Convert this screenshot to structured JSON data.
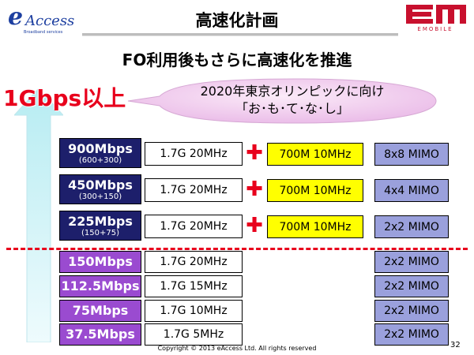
{
  "header": {
    "brand_e": "e",
    "brand_access": "Access",
    "brand_sub": "Broadband services",
    "title": "高速化計画",
    "em_sub": "EMOBILE"
  },
  "subtitle": "FO利用後もさらに高速化を推進",
  "gbps_label": "1Gbps以上",
  "callout": {
    "line1": "2020年東京オリンピックに向け",
    "line2": "「お･も･て･な･し」"
  },
  "rows": [
    {
      "speed": "900Mbps",
      "sub": "(600+300)",
      "band": "1.7G 20MHz",
      "plus": "✚",
      "band700": "700M  10MHz",
      "mimo": "8x8 MIMO"
    },
    {
      "speed": "450Mbps",
      "sub": "(300+150)",
      "band": "1.7G 20MHz",
      "plus": "✚",
      "band700": "700M  10MHz",
      "mimo": "4x4 MIMO"
    },
    {
      "speed": "225Mbps",
      "sub": "(150+75)",
      "band": "1.7G 20MHz",
      "plus": "✚",
      "band700": "700M  10MHz",
      "mimo": "2x2 MIMO"
    },
    {
      "speed": "150Mbps",
      "band": "1.7G 20MHz",
      "mimo": "2x2 MIMO"
    },
    {
      "speed": "112.5Mbps",
      "band": "1.7G 15MHz",
      "mimo": "2x2 MIMO"
    },
    {
      "speed": "75Mbps",
      "band": "1.7G 10MHz",
      "mimo": "2x2 MIMO"
    },
    {
      "speed": "37.5Mbps",
      "band": "1.7G 5MHz",
      "mimo": "2x2 MIMO"
    }
  ],
  "footer": "Copyright © 2013 eAccess Ltd. All rights reserved",
  "page_number": "32",
  "colors": {
    "accent_red": "#e8001c",
    "navy": "#1d1f6b",
    "purple": "#9a4bd0",
    "yellow": "#ffff00",
    "mimo_blue": "#9aa0dc"
  }
}
